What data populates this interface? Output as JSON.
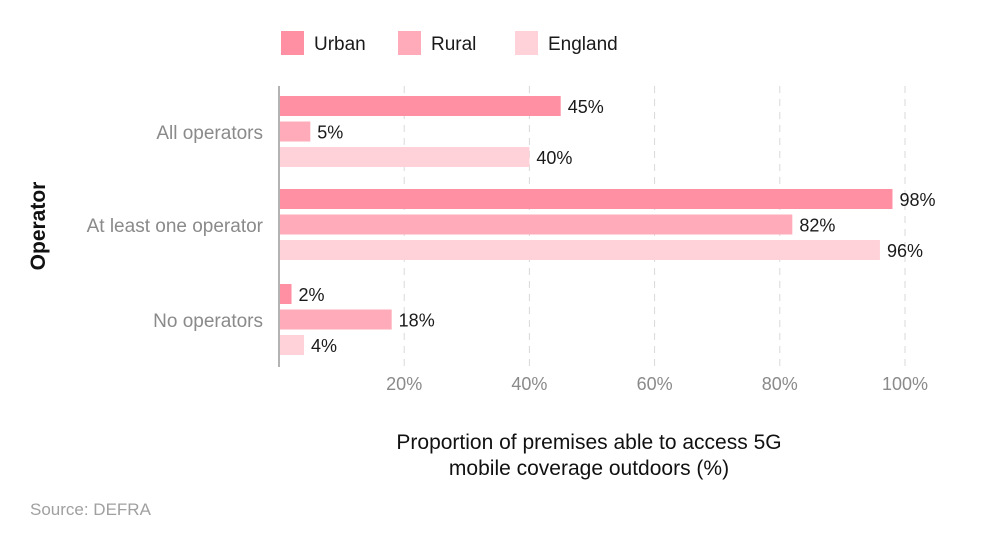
{
  "chart_data": {
    "type": "bar",
    "orientation": "horizontal",
    "categories": [
      "All operators",
      "At least one operator",
      "No operators"
    ],
    "series": [
      {
        "name": "Urban",
        "values": [
          45,
          98,
          2
        ],
        "color": "#ff8fa3"
      },
      {
        "name": "Rural",
        "values": [
          5,
          82,
          18
        ],
        "color": "#ffabb9"
      },
      {
        "name": "England",
        "values": [
          40,
          96,
          4
        ],
        "color": "#ffd2da"
      }
    ],
    "value_suffix": "%",
    "xlim": [
      0,
      100
    ],
    "xticks": [
      20,
      40,
      60,
      80,
      100
    ],
    "xtick_labels": [
      "20%",
      "40%",
      "60%",
      "80%",
      "100%"
    ],
    "xlabel_lines": [
      "Proportion of premises able to access 5G",
      "mobile coverage outdoors (%)"
    ],
    "ylabel": "Operator",
    "legend_position": "top-left",
    "grid": "vertical-dashed"
  },
  "source": "Source: DEFRA"
}
